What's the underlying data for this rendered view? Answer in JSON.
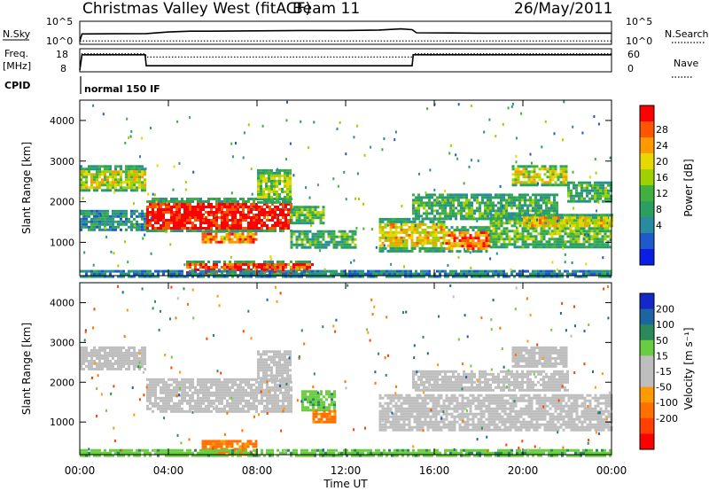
{
  "header": {
    "station": "Christmas Valley West (fitACF)",
    "beam": "Beam 11",
    "date": "26/May/2011"
  },
  "top_panels": {
    "nsky_label": "N.Sky",
    "nsearch_label": "N.Search",
    "nsky_ticks": [
      "10^5",
      "10^0"
    ],
    "nsearch_ticks": [
      "10^5",
      "10^0"
    ],
    "freq_label": [
      "Freq.",
      "[MHz]"
    ],
    "freq_ticks": [
      "18",
      "8"
    ],
    "nave_label": "Nave",
    "nave_ticks": [
      "60",
      "0"
    ],
    "cpid_label": "CPID",
    "cpid_value": "normal 150 IF"
  },
  "chart_data": [
    {
      "type": "line",
      "panel": "nsky",
      "x_hours": [
        0,
        0.1,
        3,
        4,
        5,
        6,
        8,
        10,
        12,
        13.5,
        14.5,
        15,
        15.2,
        18,
        22,
        24
      ],
      "nsky_log": [
        0.3,
        2.2,
        2.3,
        2.7,
        2.9,
        2.9,
        3.0,
        3.1,
        3.1,
        3.2,
        3.5,
        3.3,
        2.5,
        2.4,
        2.4,
        2.4
      ],
      "nsearch_log": [
        0.3,
        0.4,
        0.4,
        0.4,
        0.4,
        0.4,
        0.4,
        0.4,
        0.4,
        0.4,
        0.4,
        0.4,
        0.4,
        0.4,
        0.4,
        0.4
      ],
      "xlim": [
        0,
        24
      ]
    },
    {
      "type": "line",
      "panel": "freq_nave",
      "x_hours": [
        0,
        0.1,
        2.95,
        3.0,
        15.0,
        15.05,
        24
      ],
      "freq_mhz": [
        8,
        15.8,
        15.8,
        10.2,
        10.2,
        15.8,
        15.8
      ],
      "nave": [
        0,
        50,
        50,
        40,
        40,
        50,
        50
      ],
      "freq_ylim": [
        8,
        18
      ],
      "nave_ylim": [
        0,
        60
      ]
    },
    {
      "type": "heatmap",
      "panel": "power",
      "ylabel": "Slant Range [km]",
      "xlim_hours": [
        0,
        24
      ],
      "ylim_km": [
        180,
        4500
      ],
      "y_ticks": [
        1000,
        2000,
        3000,
        4000
      ],
      "colorbar_label": "Power [dB]",
      "colorbar_ticks": [
        28,
        24,
        20,
        16,
        12,
        8,
        4
      ],
      "colorbar_colors": [
        "#ff0000",
        "#ff5500",
        "#ff9900",
        "#e6d800",
        "#a0d000",
        "#40b040",
        "#2aa060",
        "#2a8aa0",
        "#1e5acb",
        "#0a1ee6"
      ],
      "regions": [
        {
          "x": [
            0,
            2.9
          ],
          "y": [
            2300,
            2900
          ],
          "level": 18
        },
        {
          "x": [
            0,
            2.9
          ],
          "y": [
            1300,
            1800
          ],
          "level": 9
        },
        {
          "x": [
            3,
            9.5
          ],
          "y": [
            1250,
            2100
          ],
          "level": 29
        },
        {
          "x": [
            8,
            9.5
          ],
          "y": [
            2000,
            2800
          ],
          "level": 16
        },
        {
          "x": [
            9.5,
            11
          ],
          "y": [
            1500,
            1900
          ],
          "level": 14
        },
        {
          "x": [
            5.5,
            8
          ],
          "y": [
            1000,
            1300
          ],
          "level": 24
        },
        {
          "x": [
            9.5,
            12.5
          ],
          "y": [
            900,
            1300
          ],
          "level": 12
        },
        {
          "x": [
            4.8,
            10.5
          ],
          "y": [
            200,
            550
          ],
          "level": 27
        },
        {
          "x": [
            13.5,
            16.5
          ],
          "y": [
            800,
            1600
          ],
          "level": 20
        },
        {
          "x": [
            16.5,
            18.5
          ],
          "y": [
            800,
            1400
          ],
          "level": 24
        },
        {
          "x": [
            18.5,
            24
          ],
          "y": [
            900,
            1700
          ],
          "level": 14
        },
        {
          "x": [
            15,
            21.5
          ],
          "y": [
            1600,
            2200
          ],
          "level": 12
        },
        {
          "x": [
            19.5,
            22
          ],
          "y": [
            2400,
            2900
          ],
          "level": 18
        },
        {
          "x": [
            22,
            24
          ],
          "y": [
            2000,
            2500
          ],
          "level": 12
        },
        {
          "x": [
            20,
            24
          ],
          "y": [
            1400,
            1700
          ],
          "level": 20
        },
        {
          "x": [
            0,
            24
          ],
          "y": [
            180,
            320
          ],
          "level": 8
        }
      ]
    },
    {
      "type": "heatmap",
      "panel": "velocity",
      "xlabel": "Time UT",
      "ylabel": "Slant Range [km]",
      "xlim_hours": [
        0,
        24
      ],
      "ylim_km": [
        180,
        4500
      ],
      "x_tick_labels": [
        "00:00",
        "04:00",
        "08:00",
        "12:00",
        "16:00",
        "20:00",
        "00:00"
      ],
      "y_ticks": [
        1000,
        2000,
        3000,
        4000
      ],
      "colorbar_label": "Velocity [m s⁻¹]",
      "colorbar_ticks": [
        200,
        100,
        50,
        15,
        -15,
        -50,
        -100,
        -200
      ],
      "colorbar_colors": [
        "#1428c8",
        "#1e64a0",
        "#2a8a5a",
        "#6acc40",
        "#bebebe",
        "#bebebe",
        "#ff9a00",
        "#ff7000",
        "#ff4000",
        "#ff0000"
      ],
      "regions": [
        {
          "x": [
            0,
            2.9
          ],
          "y": [
            2300,
            2900
          ],
          "level": 0
        },
        {
          "x": [
            3,
            9.5
          ],
          "y": [
            1250,
            2100
          ],
          "level": 0
        },
        {
          "x": [
            8,
            9.5
          ],
          "y": [
            2000,
            2800
          ],
          "level": 0
        },
        {
          "x": [
            10,
            11.5
          ],
          "y": [
            1300,
            1800
          ],
          "level": 40
        },
        {
          "x": [
            10.5,
            11.5
          ],
          "y": [
            1000,
            1300
          ],
          "level": -60
        },
        {
          "x": [
            5.5,
            8
          ],
          "y": [
            200,
            550
          ],
          "level": -60
        },
        {
          "x": [
            13.5,
            24
          ],
          "y": [
            800,
            1700
          ],
          "level": 0
        },
        {
          "x": [
            15,
            22
          ],
          "y": [
            1800,
            2300
          ],
          "level": 0
        },
        {
          "x": [
            19.5,
            22
          ],
          "y": [
            2400,
            2900
          ],
          "level": 0
        },
        {
          "x": [
            0,
            24
          ],
          "y": [
            180,
            320
          ],
          "level": 40
        }
      ]
    }
  ]
}
